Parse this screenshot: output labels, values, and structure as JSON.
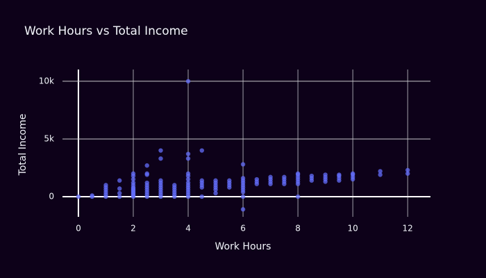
{
  "chart_data": {
    "type": "scatter",
    "title": "Work Hours vs Total Income",
    "x_label": "Work Hours",
    "y_label": "Total Income",
    "series": [
      {
        "color": "#636efa",
        "x": [
          0,
          0.5,
          0.5,
          1,
          1,
          1,
          1,
          1,
          1,
          1.5,
          1.5,
          1.5,
          1.5,
          2,
          2,
          2,
          2,
          2,
          2,
          2,
          2,
          2,
          2,
          2,
          2,
          2,
          2,
          2.5,
          2.5,
          2.5,
          2.5,
          2.5,
          2.5,
          2.5,
          2.5,
          2.5,
          2.5,
          3,
          3,
          3,
          3,
          3,
          3,
          3,
          3,
          3,
          3,
          3.5,
          3.5,
          3.5,
          3.5,
          3.5,
          3.5,
          4,
          4,
          4,
          4,
          4,
          4,
          4,
          4,
          4,
          4,
          4,
          4,
          4,
          4.5,
          4.5,
          4.5,
          4.5,
          4.5,
          4.5,
          5,
          5,
          5,
          5,
          5,
          5,
          5.5,
          5.5,
          5.5,
          5.5,
          6,
          6,
          6,
          6,
          6,
          6,
          6,
          6,
          6,
          6,
          6.5,
          6.5,
          6.5,
          7,
          7,
          7,
          7,
          7.5,
          7.5,
          7.5,
          7.5,
          8,
          8,
          8,
          8,
          8,
          8,
          8,
          8.5,
          8.5,
          8.5,
          9,
          9,
          9,
          9,
          9.5,
          9.5,
          9.5,
          9.5,
          10,
          10,
          10,
          10,
          11,
          11,
          12,
          12
        ],
        "values": [
          0,
          0,
          100,
          0,
          200,
          400,
          600,
          800,
          1000,
          0,
          300,
          700,
          1400,
          0,
          100,
          200,
          300,
          400,
          500,
          600,
          700,
          800,
          1000,
          1200,
          1500,
          1800,
          2000,
          0,
          200,
          400,
          600,
          800,
          1000,
          1200,
          1900,
          2000,
          2700,
          0,
          200,
          400,
          600,
          800,
          1000,
          1200,
          1400,
          3300,
          4000,
          0,
          200,
          400,
          600,
          800,
          1000,
          0,
          200,
          400,
          600,
          800,
          1000,
          1200,
          1500,
          1800,
          2000,
          3300,
          3700,
          10000,
          0,
          800,
          1000,
          1200,
          1400,
          4000,
          300,
          600,
          800,
          1000,
          1200,
          1400,
          800,
          1000,
          1200,
          1400,
          -1100,
          0,
          400,
          600,
          800,
          1000,
          1200,
          1400,
          1600,
          2800,
          1100,
          1300,
          1500,
          1100,
          1300,
          1500,
          1700,
          1100,
          1300,
          1500,
          1700,
          0,
          1100,
          1300,
          1500,
          1700,
          1900,
          2000,
          1400,
          1600,
          1800,
          1300,
          1500,
          1700,
          1900,
          1400,
          1600,
          1800,
          1900,
          1500,
          1700,
          1900,
          2000,
          1900,
          2200,
          2000,
          2300
        ]
      }
    ],
    "xlim": [
      -0.58,
      12.83
    ],
    "xticks": [
      0,
      2,
      4,
      6,
      8,
      10,
      12
    ],
    "ylim": [
      -1750,
      11020
    ],
    "yticks": [
      0,
      {
        "value": 5000,
        "label": "5k"
      },
      {
        "value": 10000,
        "label": "10k"
      }
    ],
    "grid": true
  }
}
